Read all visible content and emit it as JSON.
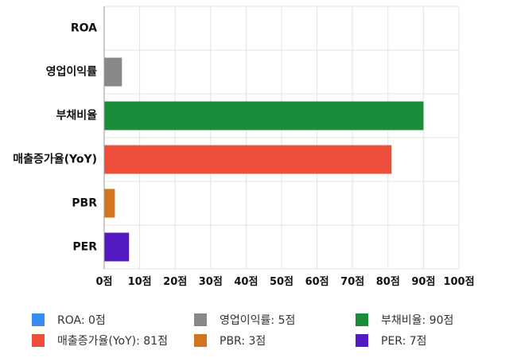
{
  "chart_data": {
    "type": "bar",
    "orientation": "horizontal",
    "categories": [
      "ROA",
      "영업이익률",
      "부채비율",
      "매출증가율(YoY)",
      "PBR",
      "PER"
    ],
    "values": [
      0,
      5,
      90,
      81,
      3,
      7
    ],
    "colors": [
      "#3b8beb",
      "#888888",
      "#1a8c3a",
      "#ee4e3c",
      "#d2751e",
      "#5319c2"
    ],
    "xlim": [
      0,
      100
    ],
    "xticks": [
      "0점",
      "10점",
      "20점",
      "30점",
      "40점",
      "50점",
      "60점",
      "70점",
      "80점",
      "90점",
      "100점"
    ],
    "grid": true,
    "legend_position": "bottom"
  },
  "legend": [
    {
      "label": "ROA: 0점",
      "color": "#3b8beb"
    },
    {
      "label": "영업이익률: 5점",
      "color": "#888888"
    },
    {
      "label": "부채비율: 90점",
      "color": "#1a8c3a"
    },
    {
      "label": "매출증가율(YoY): 81점",
      "color": "#ee4e3c"
    },
    {
      "label": "PBR: 3점",
      "color": "#d2751e"
    },
    {
      "label": "PER: 7점",
      "color": "#5319c2"
    }
  ]
}
